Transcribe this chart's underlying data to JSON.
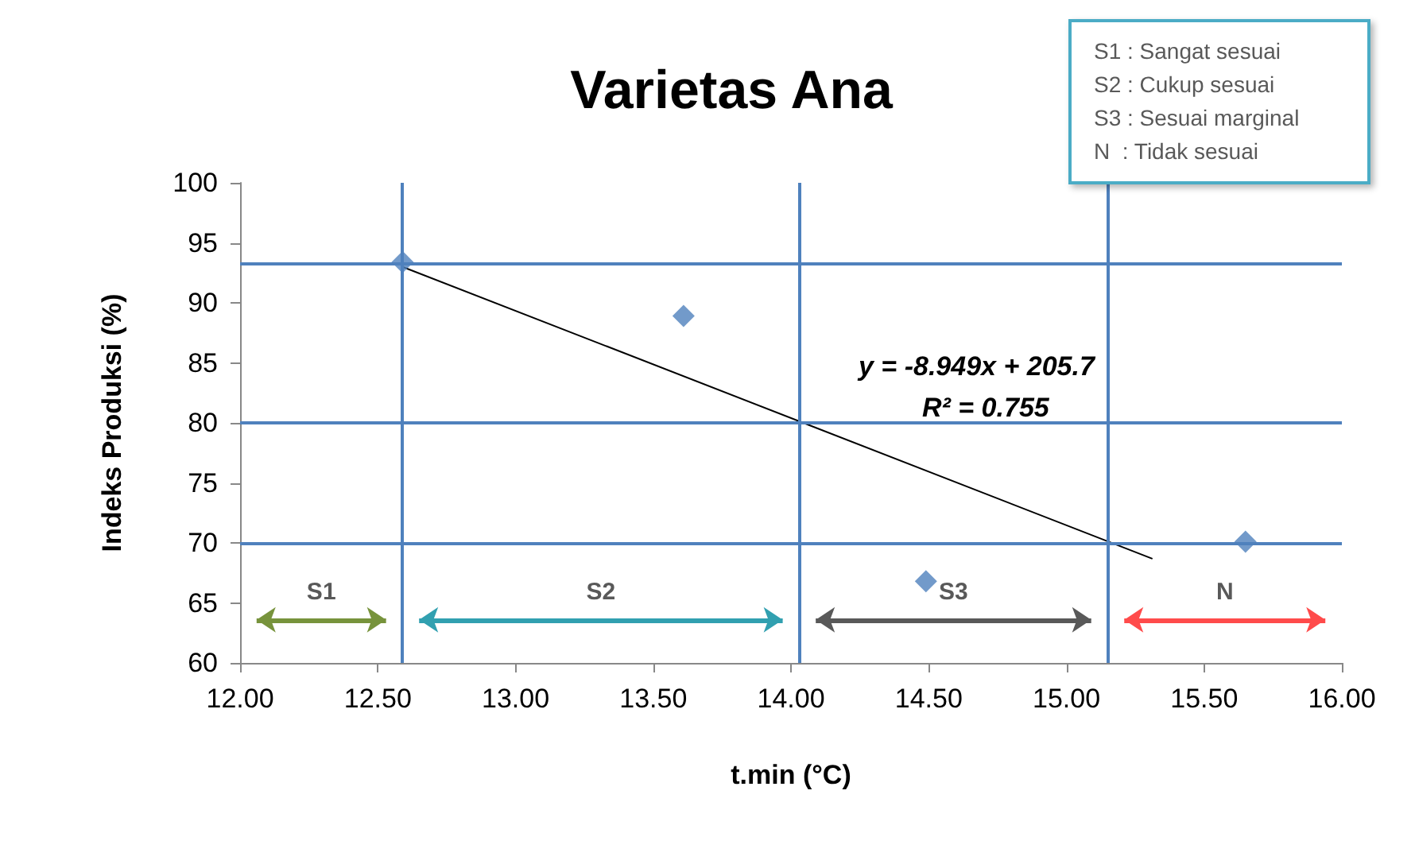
{
  "chart_data": {
    "type": "scatter",
    "title": "Varietas Ana",
    "xlabel": "t.min (°C)",
    "ylabel": "Indeks Produksi (%)",
    "xlim": [
      12,
      16
    ],
    "xticks": [
      {
        "value": 12,
        "label": "12.00"
      },
      {
        "value": 12.5,
        "label": "12.50"
      },
      {
        "value": 13,
        "label": "13.00"
      },
      {
        "value": 13.5,
        "label": "13.50"
      },
      {
        "value": 14,
        "label": "14.00"
      },
      {
        "value": 14.5,
        "label": "14.50"
      },
      {
        "value": 15,
        "label": "15.00"
      },
      {
        "value": 15.5,
        "label": "15.50"
      },
      {
        "value": 16,
        "label": "16.00"
      }
    ],
    "ylim": [
      60,
      100
    ],
    "yticks": [
      60,
      65,
      70,
      75,
      80,
      85,
      90,
      95,
      100
    ],
    "grid": false,
    "marker": "diamond",
    "series": [
      {
        "color": "#4f81bd",
        "x": [
          12.59,
          13.61,
          14.49,
          15.65
        ],
        "values": [
          93.4,
          88.9,
          66.8,
          70.1
        ]
      },
      {
        "type": "line",
        "color": "#000000",
        "marker": "none",
        "line_style": "solid",
        "x": [
          12.59,
          15.31
        ],
        "values": [
          93.0,
          68.7
        ]
      }
    ],
    "ref_lines": [
      {
        "axis": "y",
        "value": 93.3,
        "color": "#4f81bd"
      },
      {
        "axis": "y",
        "value": 80,
        "color": "#4f81bd"
      },
      {
        "axis": "y",
        "value": 70,
        "color": "#4f81bd"
      },
      {
        "axis": "x",
        "value": 12.59,
        "color": "#4f81bd"
      },
      {
        "axis": "x",
        "value": 14.03,
        "color": "#4f81bd"
      },
      {
        "axis": "x",
        "value": 15.15,
        "color": "#4f81bd"
      }
    ],
    "annotations": [
      "y = -8.949x + 205.7",
      "R² = 0.755",
      "S1",
      "S2",
      "S3",
      "N",
      "S1 : Sangat sesuai",
      "S2 : Cukup sesuai",
      "S3 : Sesuai marginal",
      "N  : Tidak sesuai"
    ]
  }
}
